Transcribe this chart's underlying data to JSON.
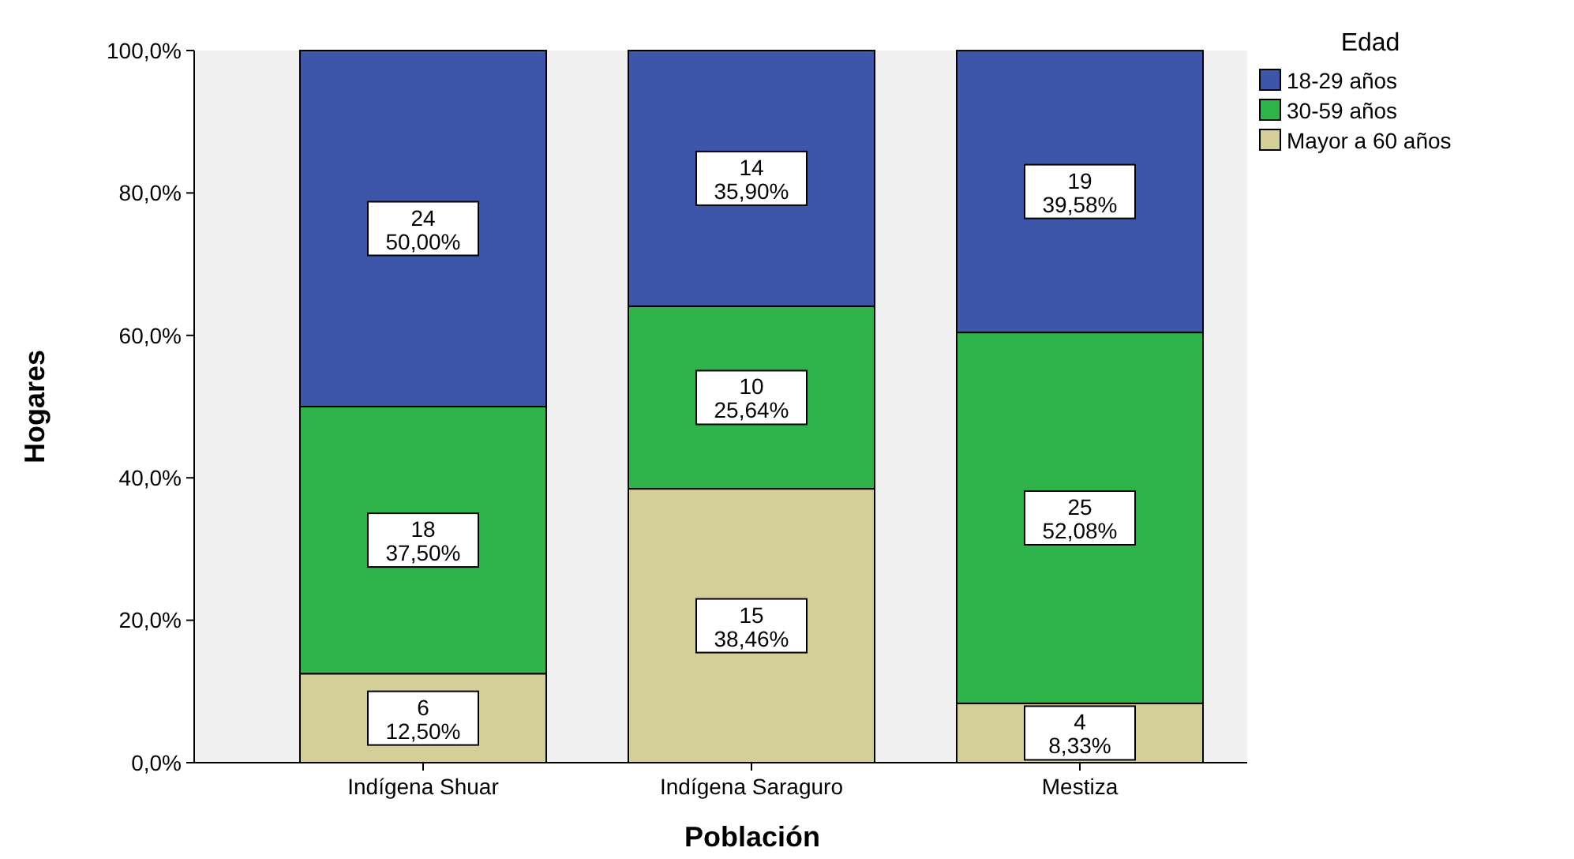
{
  "chart_data": {
    "type": "bar",
    "stacked": true,
    "xlabel": "Población",
    "ylabel": "Hogares",
    "legend_title": "Edad",
    "legend": "top right",
    "categories": [
      "Indígena Shuar",
      "Indígena Saraguro",
      "Mestiza"
    ],
    "series": [
      {
        "name": "Mayor a 60 años",
        "color": "#d4cf99",
        "values": [
          12.5,
          38.46,
          8.33
        ],
        "value_labels": [
          "6\n12,50%",
          "15\n38,46%",
          "4\n8,33%"
        ]
      },
      {
        "name": "30-59 años",
        "color": "#2fb34b",
        "values": [
          37.5,
          25.64,
          52.08
        ],
        "value_labels": [
          "18\n37,50%",
          "10\n25,64%",
          "25\n52,08%"
        ]
      },
      {
        "name": "18-29 años",
        "color": "#3d56a9",
        "values": [
          50.0,
          35.9,
          39.58
        ],
        "value_labels": [
          "24\n50,00%",
          "14\n35,90%",
          "19\n39,58%"
        ]
      }
    ],
    "ylim": [
      0,
      100
    ],
    "yticks": [
      {
        "value": 0,
        "label": "0,0%"
      },
      {
        "value": 20,
        "label": "20,0%"
      },
      {
        "value": 40,
        "label": "40,0%"
      },
      {
        "value": 60,
        "label": "60,0%"
      },
      {
        "value": 80,
        "label": "80,0%"
      },
      {
        "value": 100,
        "label": "100,0%"
      }
    ]
  }
}
